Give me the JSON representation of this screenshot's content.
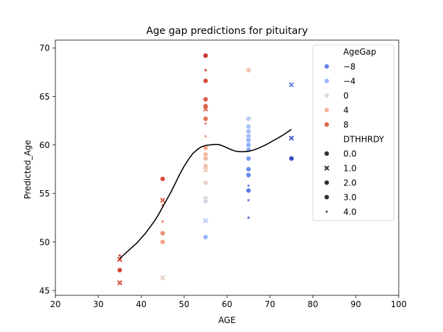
{
  "chart_data": {
    "type": "scatter",
    "title": "Age gap predictions for pituitary",
    "xlabel": "AGE",
    "ylabel": "Predicted_Age",
    "xlim": [
      20,
      100
    ],
    "ylim": [
      44.5,
      70.8
    ],
    "xticks": [
      20,
      30,
      40,
      50,
      60,
      70,
      80,
      90,
      100
    ],
    "yticks": [
      45,
      50,
      55,
      60,
      65,
      70
    ],
    "grid": false,
    "legend_position": "top-right",
    "legend": {
      "hue_title": "AgeGap",
      "hue_entries": [
        {
          "label": "−8",
          "color": "#6788ee"
        },
        {
          "label": "−4",
          "color": "#9abbff"
        },
        {
          "label": "0",
          "color": "#dddcdc"
        },
        {
          "label": "4",
          "color": "#f7b599"
        },
        {
          "label": "8",
          "color": "#e26952"
        }
      ],
      "style_title": "DTHHRDY",
      "style_entries": [
        {
          "label": "0.0",
          "marker": "circle"
        },
        {
          "label": "1.0",
          "marker": "x"
        },
        {
          "label": "2.0",
          "marker": "circle"
        },
        {
          "label": "3.0",
          "marker": "circle"
        },
        {
          "label": "4.0",
          "marker": "star"
        }
      ]
    },
    "points": [
      {
        "x": 35,
        "y": 48.2,
        "gap": 13.2,
        "marker": "x"
      },
      {
        "x": 35,
        "y": 48.6,
        "gap": 13.6,
        "marker": "star"
      },
      {
        "x": 35,
        "y": 47.1,
        "gap": 12.1,
        "marker": "circle"
      },
      {
        "x": 35,
        "y": 45.8,
        "gap": 10.8,
        "marker": "x"
      },
      {
        "x": 45,
        "y": 56.5,
        "gap": 11.5,
        "marker": "circle"
      },
      {
        "x": 45,
        "y": 54.3,
        "gap": 9.3,
        "marker": "x"
      },
      {
        "x": 45,
        "y": 53.8,
        "gap": 8.8,
        "marker": "star"
      },
      {
        "x": 45,
        "y": 52.1,
        "gap": 7.1,
        "marker": "star"
      },
      {
        "x": 45,
        "y": 50.9,
        "gap": 5.9,
        "marker": "circle"
      },
      {
        "x": 45,
        "y": 50.0,
        "gap": 5.0,
        "marker": "circle"
      },
      {
        "x": 45,
        "y": 46.3,
        "gap": 1.3,
        "marker": "x"
      },
      {
        "x": 55,
        "y": 69.2,
        "gap": 14.2,
        "marker": "circle"
      },
      {
        "x": 55,
        "y": 67.7,
        "gap": 12.7,
        "marker": "star"
      },
      {
        "x": 55,
        "y": 66.6,
        "gap": 11.6,
        "marker": "circle"
      },
      {
        "x": 55,
        "y": 64.7,
        "gap": 9.7,
        "marker": "circle"
      },
      {
        "x": 55,
        "y": 64.0,
        "gap": 9.0,
        "marker": "circle"
      },
      {
        "x": 55,
        "y": 63.7,
        "gap": 8.7,
        "marker": "x"
      },
      {
        "x": 55,
        "y": 62.7,
        "gap": 7.7,
        "marker": "circle"
      },
      {
        "x": 55,
        "y": 62.2,
        "gap": 7.2,
        "marker": "star"
      },
      {
        "x": 55,
        "y": 60.9,
        "gap": 5.9,
        "marker": "star"
      },
      {
        "x": 55,
        "y": 59.7,
        "gap": 4.7,
        "marker": "circle"
      },
      {
        "x": 55,
        "y": 59.0,
        "gap": 4.0,
        "marker": "circle"
      },
      {
        "x": 55,
        "y": 58.6,
        "gap": 3.6,
        "marker": "circle"
      },
      {
        "x": 55,
        "y": 58.0,
        "gap": 3.0,
        "marker": "star"
      },
      {
        "x": 55,
        "y": 57.8,
        "gap": 2.8,
        "marker": "circle"
      },
      {
        "x": 55,
        "y": 57.4,
        "gap": 2.4,
        "marker": "x"
      },
      {
        "x": 55,
        "y": 56.1,
        "gap": 1.1,
        "marker": "circle"
      },
      {
        "x": 55,
        "y": 54.5,
        "gap": -0.5,
        "marker": "circle"
      },
      {
        "x": 55,
        "y": 54.2,
        "gap": -0.8,
        "marker": "circle"
      },
      {
        "x": 55,
        "y": 52.2,
        "gap": -2.8,
        "marker": "x"
      },
      {
        "x": 55,
        "y": 50.5,
        "gap": -4.5,
        "marker": "circle"
      },
      {
        "x": 65,
        "y": 67.7,
        "gap": 2.7,
        "marker": "circle"
      },
      {
        "x": 65,
        "y": 62.7,
        "gap": -2.3,
        "marker": "circle"
      },
      {
        "x": 65,
        "y": 61.9,
        "gap": -3.1,
        "marker": "circle"
      },
      {
        "x": 65,
        "y": 61.4,
        "gap": -3.6,
        "marker": "circle"
      },
      {
        "x": 65,
        "y": 60.9,
        "gap": -4.1,
        "marker": "circle"
      },
      {
        "x": 65,
        "y": 60.5,
        "gap": -4.5,
        "marker": "circle"
      },
      {
        "x": 65,
        "y": 60.0,
        "gap": -5.0,
        "marker": "circle"
      },
      {
        "x": 65,
        "y": 59.5,
        "gap": -5.5,
        "marker": "circle"
      },
      {
        "x": 65,
        "y": 58.6,
        "gap": -6.4,
        "marker": "circle"
      },
      {
        "x": 65,
        "y": 57.5,
        "gap": -7.5,
        "marker": "circle"
      },
      {
        "x": 65,
        "y": 56.9,
        "gap": -8.1,
        "marker": "circle"
      },
      {
        "x": 65,
        "y": 55.8,
        "gap": -9.2,
        "marker": "star"
      },
      {
        "x": 65,
        "y": 55.3,
        "gap": -9.7,
        "marker": "circle"
      },
      {
        "x": 65,
        "y": 54.3,
        "gap": -10.7,
        "marker": "star"
      },
      {
        "x": 65,
        "y": 52.5,
        "gap": -12.5,
        "marker": "star"
      },
      {
        "x": 75,
        "y": 66.2,
        "gap": -8.8,
        "marker": "x"
      },
      {
        "x": 75,
        "y": 60.7,
        "gap": -14.3,
        "marker": "x"
      },
      {
        "x": 75,
        "y": 58.6,
        "gap": -16.4,
        "marker": "circle"
      }
    ],
    "curve": {
      "x": [
        35,
        36,
        37,
        38,
        39,
        40,
        41,
        42,
        43,
        44,
        45,
        46,
        47,
        48,
        49,
        50,
        51,
        52,
        53,
        54,
        55,
        56,
        57,
        58,
        59,
        60,
        61,
        62,
        63,
        64,
        65,
        66,
        67,
        68,
        69,
        70,
        71,
        72,
        73,
        74,
        75
      ],
      "y": [
        48.3,
        48.7,
        49.1,
        49.5,
        49.9,
        50.4,
        50.9,
        51.5,
        52.1,
        52.8,
        53.6,
        54.4,
        55.2,
        56.1,
        57.0,
        57.8,
        58.5,
        59.1,
        59.5,
        59.8,
        59.95,
        60.0,
        60.05,
        60.05,
        59.9,
        59.7,
        59.5,
        59.35,
        59.3,
        59.3,
        59.35,
        59.45,
        59.6,
        59.8,
        60.0,
        60.25,
        60.5,
        60.75,
        61.0,
        61.3,
        61.6
      ],
      "color": "#000000"
    }
  }
}
